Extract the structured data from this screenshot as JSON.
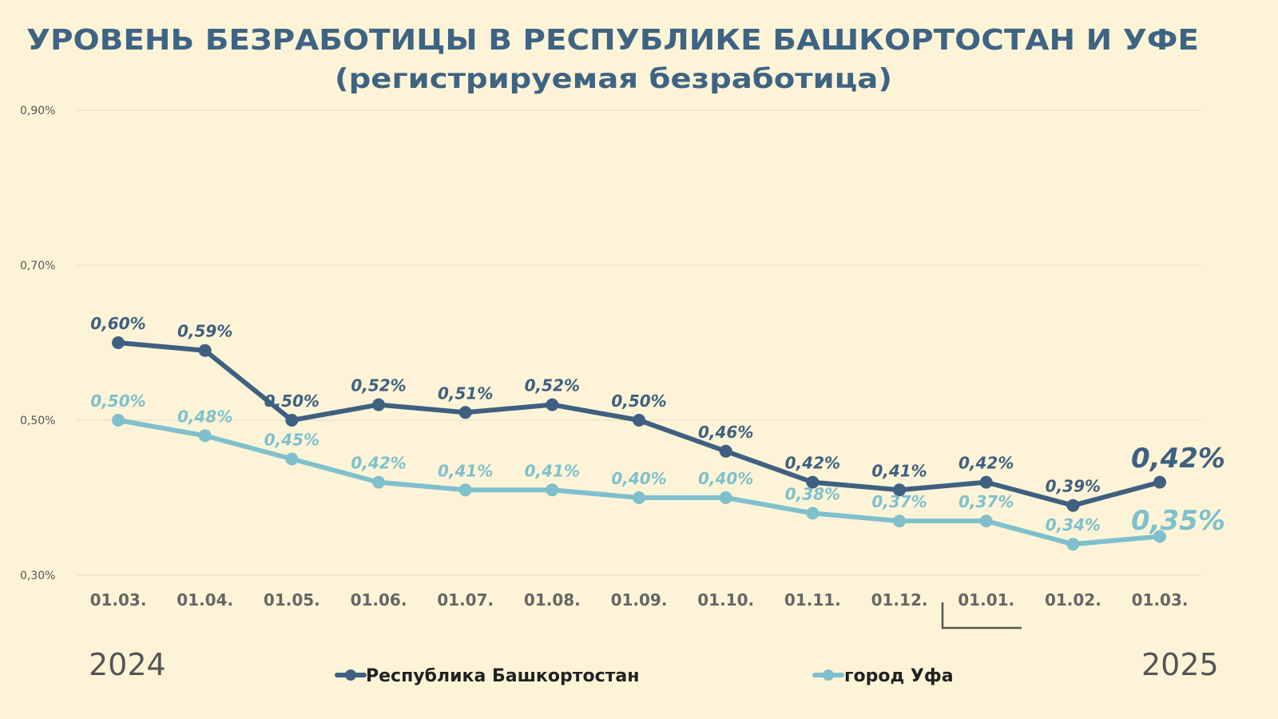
{
  "colors": {
    "background": "#fdf4d8",
    "title": "#3f6483",
    "series1": "#3f6080",
    "series2": "#7fc0cc",
    "grid": "#e8e0c8"
  },
  "chart_data": {
    "type": "line",
    "title": "УРОВЕНЬ БЕЗРАБОТИЦЫ В РЕСПУБЛИКЕ БАШКОРТОСТАН И УФЕ",
    "subtitle": "(регистрируемая безработица)",
    "categories": [
      "01.03.",
      "01.04.",
      "01.05.",
      "01.06.",
      "01.07.",
      "01.08.",
      "01.09.",
      "01.10.",
      "01.11.",
      "01.12.",
      "01.01.",
      "01.02.",
      "01.03."
    ],
    "ylim": [
      0.3,
      0.9
    ],
    "yticks": [
      0.3,
      0.5,
      0.7,
      0.9
    ],
    "ytick_labels": [
      "0,30%",
      "0,50%",
      "0,70%",
      "0,90%"
    ],
    "year_labels": [
      "2024",
      "2025"
    ],
    "legend_position": "bottom",
    "series": [
      {
        "name": "Республика Башкортостан",
        "values": [
          0.6,
          0.59,
          0.5,
          0.52,
          0.51,
          0.52,
          0.5,
          0.46,
          0.42,
          0.41,
          0.42,
          0.39,
          0.42
        ],
        "labels": [
          "0,60%",
          "0,59%",
          "0,50%",
          "0,52%",
          "0,51%",
          "0,52%",
          "0,50%",
          "0,46%",
          "0,42%",
          "0,41%",
          "0,42%",
          "0,39%",
          "0,42%"
        ]
      },
      {
        "name": "город Уфа",
        "values": [
          0.5,
          0.48,
          0.45,
          0.42,
          0.41,
          0.41,
          0.4,
          0.4,
          0.38,
          0.37,
          0.37,
          0.34,
          0.35
        ],
        "labels": [
          "0,50%",
          "0,48%",
          "0,45%",
          "0,42%",
          "0,41%",
          "0,41%",
          "0,40%",
          "0,40%",
          "0,38%",
          "0,37%",
          "0,37%",
          "0,34%",
          "0,35%"
        ]
      }
    ]
  }
}
